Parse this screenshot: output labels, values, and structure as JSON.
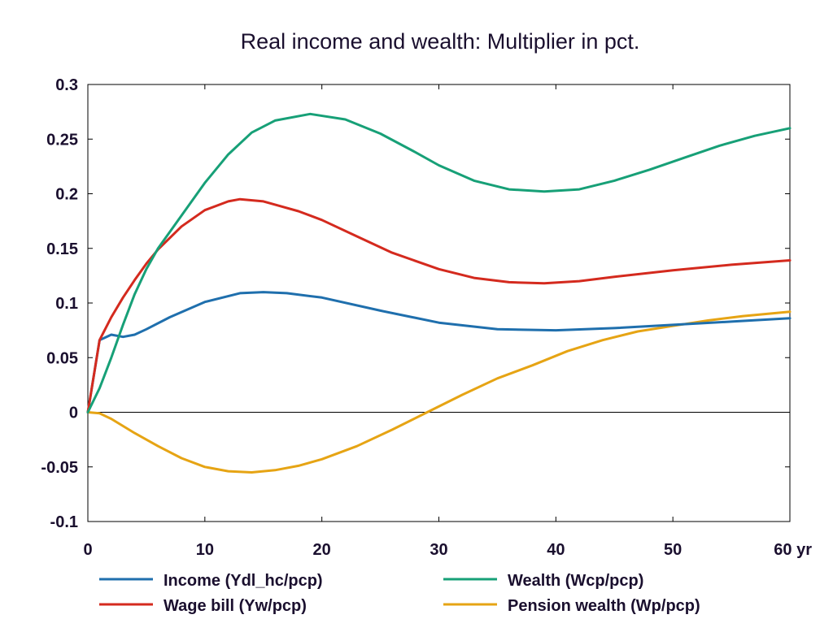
{
  "chart_data": {
    "type": "line",
    "title": "Real income and wealth: Multiplier in pct.",
    "xlabel": "",
    "ylabel": "",
    "x_unit_label": "yr",
    "xlim": [
      0,
      60
    ],
    "ylim": [
      -0.1,
      0.3
    ],
    "x_ticks": [
      0,
      10,
      20,
      30,
      40,
      50,
      60
    ],
    "x_tick_labels": [
      "0",
      "10",
      "20",
      "30",
      "40",
      "50",
      "60 yr"
    ],
    "y_ticks": [
      -0.1,
      -0.05,
      0,
      0.05,
      0.1,
      0.15,
      0.2,
      0.25,
      0.3
    ],
    "y_tick_labels": [
      "-0.1",
      "-0.05",
      "0",
      "0.05",
      "0.1",
      "0.15",
      "0.2",
      "0.25",
      "0.3"
    ],
    "grid": false,
    "zero_line": true,
    "legend_position": "bottom",
    "series": [
      {
        "name": "Income (Ydl_hc/pcp)",
        "color": "#1f6fad",
        "points": [
          [
            0,
            0
          ],
          [
            1,
            0.066
          ],
          [
            2,
            0.071
          ],
          [
            3,
            0.069
          ],
          [
            4,
            0.071
          ],
          [
            5,
            0.076
          ],
          [
            7,
            0.087
          ],
          [
            10,
            0.101
          ],
          [
            13,
            0.109
          ],
          [
            15,
            0.11
          ],
          [
            17,
            0.109
          ],
          [
            20,
            0.105
          ],
          [
            25,
            0.093
          ],
          [
            30,
            0.082
          ],
          [
            35,
            0.076
          ],
          [
            40,
            0.075
          ],
          [
            45,
            0.077
          ],
          [
            50,
            0.08
          ],
          [
            55,
            0.083
          ],
          [
            60,
            0.086
          ]
        ]
      },
      {
        "name": "Wealth (Wcp/pcp)",
        "color": "#17a077",
        "points": [
          [
            0,
            0
          ],
          [
            1,
            0.022
          ],
          [
            2,
            0.05
          ],
          [
            3,
            0.08
          ],
          [
            4,
            0.108
          ],
          [
            5,
            0.131
          ],
          [
            6,
            0.15
          ],
          [
            8,
            0.18
          ],
          [
            10,
            0.21
          ],
          [
            12,
            0.236
          ],
          [
            14,
            0.256
          ],
          [
            16,
            0.267
          ],
          [
            19,
            0.273
          ],
          [
            22,
            0.268
          ],
          [
            25,
            0.255
          ],
          [
            28,
            0.238
          ],
          [
            30,
            0.226
          ],
          [
            33,
            0.212
          ],
          [
            36,
            0.204
          ],
          [
            39,
            0.202
          ],
          [
            42,
            0.204
          ],
          [
            45,
            0.212
          ],
          [
            48,
            0.222
          ],
          [
            51,
            0.233
          ],
          [
            54,
            0.244
          ],
          [
            57,
            0.253
          ],
          [
            60,
            0.26
          ]
        ]
      },
      {
        "name": "Wage bill (Yw/pcp)",
        "color": "#d42a1e",
        "points": [
          [
            0,
            0
          ],
          [
            1,
            0.066
          ],
          [
            2,
            0.087
          ],
          [
            3,
            0.105
          ],
          [
            4,
            0.121
          ],
          [
            5,
            0.136
          ],
          [
            6,
            0.149
          ],
          [
            8,
            0.17
          ],
          [
            10,
            0.185
          ],
          [
            12,
            0.193
          ],
          [
            13,
            0.195
          ],
          [
            15,
            0.193
          ],
          [
            18,
            0.184
          ],
          [
            20,
            0.176
          ],
          [
            23,
            0.161
          ],
          [
            26,
            0.146
          ],
          [
            30,
            0.131
          ],
          [
            33,
            0.123
          ],
          [
            36,
            0.119
          ],
          [
            39,
            0.118
          ],
          [
            42,
            0.12
          ],
          [
            45,
            0.124
          ],
          [
            50,
            0.13
          ],
          [
            55,
            0.135
          ],
          [
            60,
            0.139
          ]
        ]
      },
      {
        "name": "Pension wealth (Wp/pcp)",
        "color": "#e6a414",
        "points": [
          [
            0,
            0
          ],
          [
            1,
            -0.001
          ],
          [
            2,
            -0.006
          ],
          [
            4,
            -0.019
          ],
          [
            6,
            -0.031
          ],
          [
            8,
            -0.042
          ],
          [
            10,
            -0.05
          ],
          [
            12,
            -0.054
          ],
          [
            14,
            -0.055
          ],
          [
            16,
            -0.053
          ],
          [
            18,
            -0.049
          ],
          [
            20,
            -0.043
          ],
          [
            23,
            -0.031
          ],
          [
            26,
            -0.016
          ],
          [
            29,
            0.0
          ],
          [
            32,
            0.016
          ],
          [
            35,
            0.031
          ],
          [
            38,
            0.043
          ],
          [
            41,
            0.056
          ],
          [
            44,
            0.066
          ],
          [
            47,
            0.074
          ],
          [
            50,
            0.079
          ],
          [
            53,
            0.084
          ],
          [
            56,
            0.088
          ],
          [
            60,
            0.092
          ]
        ]
      }
    ]
  }
}
